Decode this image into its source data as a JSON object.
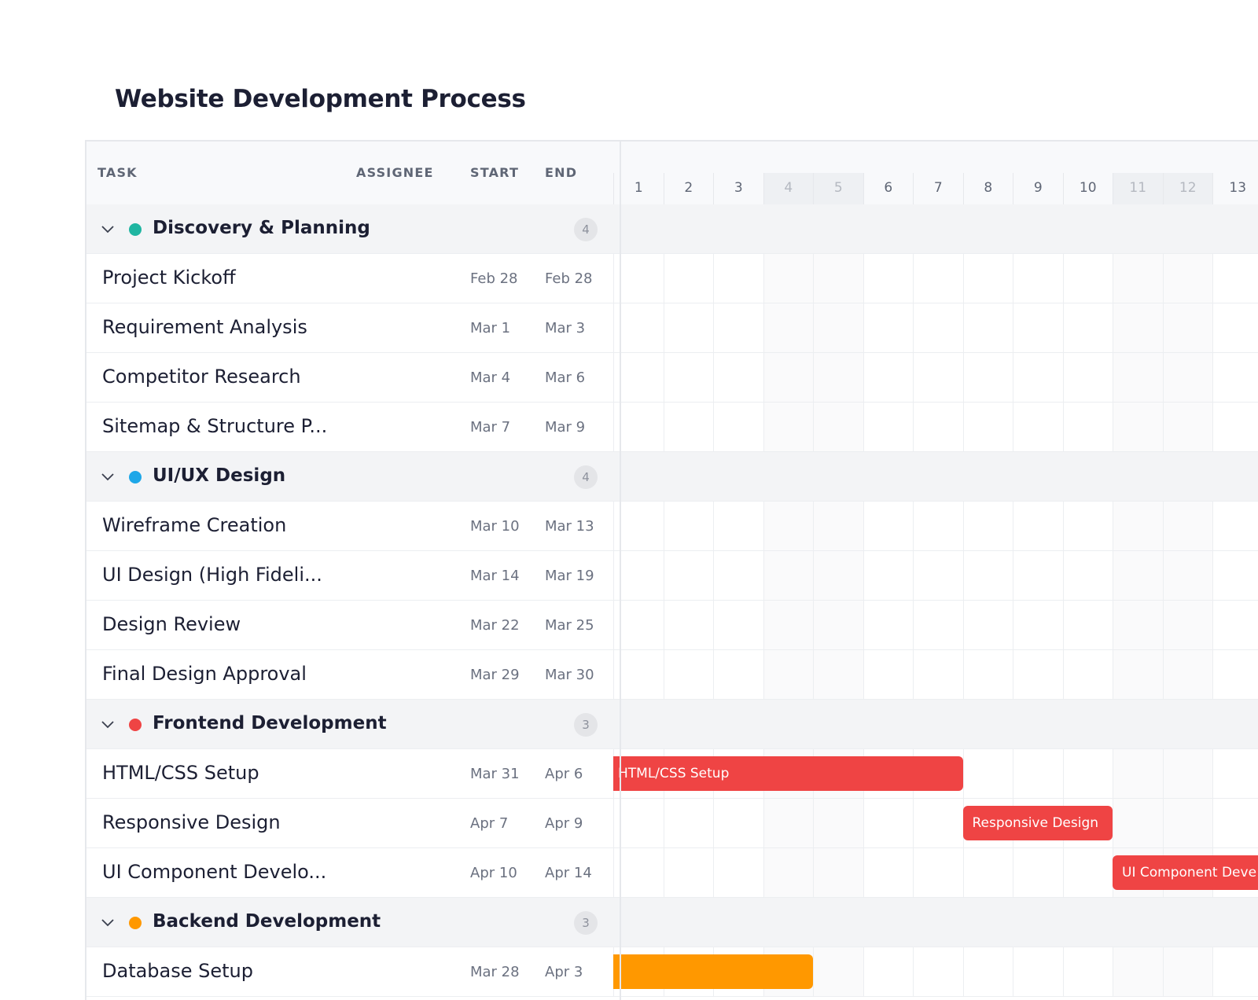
{
  "title": "Website Development Process",
  "columns": {
    "task": "TASK",
    "assignee": "ASSIGNEE",
    "start": "START",
    "end": "END"
  },
  "days": [
    "1",
    "2",
    "3",
    "4",
    "5",
    "6",
    "7",
    "8",
    "9",
    "10",
    "11",
    "12",
    "13"
  ],
  "weekend_days": [
    "4",
    "5",
    "11",
    "12"
  ],
  "groups": [
    {
      "name": "Discovery & Planning",
      "color": "#1fb5a1",
      "count": "4",
      "tasks": [
        {
          "name": "Project Kickoff",
          "start": "Feb 28",
          "end": "Feb 28"
        },
        {
          "name": "Requirement Analysis",
          "start": "Mar 1",
          "end": "Mar 3"
        },
        {
          "name": "Competitor Research",
          "start": "Mar 4",
          "end": "Mar 6"
        },
        {
          "name": "Sitemap & Structure P...",
          "start": "Mar 7",
          "end": "Mar 9"
        }
      ]
    },
    {
      "name": "UI/UX Design",
      "color": "#1ea7e8",
      "count": "4",
      "tasks": [
        {
          "name": "Wireframe Creation",
          "start": "Mar 10",
          "end": "Mar 13"
        },
        {
          "name": "UI Design (High Fideli...",
          "start": "Mar 14",
          "end": "Mar 19"
        },
        {
          "name": "Design Review",
          "start": "Mar 22",
          "end": "Mar 25"
        },
        {
          "name": "Final Design Approval",
          "start": "Mar 29",
          "end": "Mar 30"
        }
      ]
    },
    {
      "name": "Frontend Development",
      "color": "#ef4444",
      "count": "3",
      "tasks": [
        {
          "name": "HTML/CSS Setup",
          "start": "Mar 31",
          "end": "Apr 6",
          "bar": {
            "label": "HTML/CSS Setup",
            "start_day": 1,
            "end_day": 7
          }
        },
        {
          "name": "Responsive Design",
          "start": "Apr 7",
          "end": "Apr 9",
          "bar": {
            "label": "Responsive Design",
            "start_day": 8,
            "end_day": 10
          }
        },
        {
          "name": "UI Component Develo...",
          "start": "Apr 10",
          "end": "Apr 14",
          "bar": {
            "label": "UI Component Deve",
            "start_day": 11,
            "end_day": 15
          }
        }
      ]
    },
    {
      "name": "Backend Development",
      "color": "#ff9800",
      "count": "3",
      "tasks": [
        {
          "name": "Database Setup",
          "start": "Mar 28",
          "end": "Apr 3",
          "bar": {
            "label": "",
            "start_day": 1,
            "end_day": 4
          }
        }
      ]
    }
  ]
}
